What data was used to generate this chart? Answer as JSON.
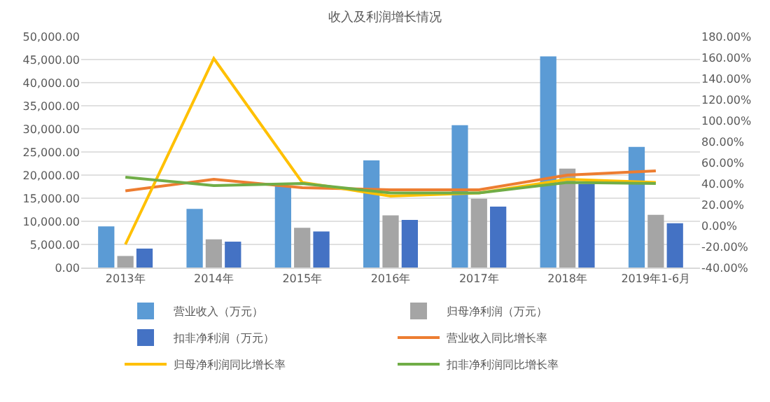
{
  "chart_data": {
    "type": "bar",
    "title": "收入及利润增长情况",
    "categories": [
      "2013年",
      "2014年",
      "2015年",
      "2016年",
      "2017年",
      "2018年",
      "2019年1-6月"
    ],
    "series": [
      {
        "name": "营业收入（万元）",
        "color": "#5b9bd5",
        "values": [
          8900,
          12700,
          17700,
          23200,
          30800,
          45700,
          26100
        ]
      },
      {
        "name": "归母净利润（万元）",
        "color": "#a5a5a5",
        "values": [
          2500,
          6100,
          8600,
          11300,
          14900,
          21400,
          11400
        ]
      },
      {
        "name": "扣非净利润（万元）",
        "color": "#4472c4",
        "values": [
          4100,
          5600,
          7800,
          10300,
          13200,
          18100,
          9600
        ]
      },
      {
        "name": "营业收入同比增长率",
        "type": "line",
        "axis": "y2",
        "color": "#ed7d31",
        "values": [
          33,
          44,
          36,
          34,
          34,
          48,
          52
        ]
      },
      {
        "name": "归母净利润同比增长率",
        "type": "line",
        "axis": "y2",
        "color": "#ffc000",
        "values": [
          -18,
          159,
          41,
          28,
          31,
          44,
          41
        ]
      },
      {
        "name": "扣非净利润同比增长率",
        "type": "line",
        "axis": "y2",
        "color": "#70ad47",
        "values": [
          46,
          38,
          40,
          31,
          31,
          41,
          40
        ]
      }
    ],
    "ylim": [
      0,
      50000
    ],
    "yticks": [
      {
        "value": 0,
        "label": "0.00"
      },
      {
        "value": 5000,
        "label": "5,000.00"
      },
      {
        "value": 10000,
        "label": "10,000.00"
      },
      {
        "value": 15000,
        "label": "15,000.00"
      },
      {
        "value": 20000,
        "label": "20,000.00"
      },
      {
        "value": 25000,
        "label": "25,000.00"
      },
      {
        "value": 30000,
        "label": "30,000.00"
      },
      {
        "value": 35000,
        "label": "35,000.00"
      },
      {
        "value": 40000,
        "label": "40,000.00"
      },
      {
        "value": 45000,
        "label": "45,000.00"
      },
      {
        "value": 50000,
        "label": "50,000.00"
      }
    ],
    "y2lim": [
      -40,
      180
    ],
    "y2ticks": [
      {
        "value": -40,
        "label": "-40.00%"
      },
      {
        "value": -20,
        "label": "-20.00%"
      },
      {
        "value": 0,
        "label": "0.00%"
      },
      {
        "value": 20,
        "label": "20.00%"
      },
      {
        "value": 40,
        "label": "40.00%"
      },
      {
        "value": 60,
        "label": "60.00%"
      },
      {
        "value": 80,
        "label": "80.00%"
      },
      {
        "value": 100,
        "label": "100.00%"
      },
      {
        "value": 120,
        "label": "120.00%"
      },
      {
        "value": 140,
        "label": "140.00%"
      },
      {
        "value": 160,
        "label": "160.00%"
      },
      {
        "value": 180,
        "label": "180.00%"
      }
    ],
    "grid": "y",
    "legend": "bottom",
    "marker": "none",
    "line_style": "solid"
  }
}
